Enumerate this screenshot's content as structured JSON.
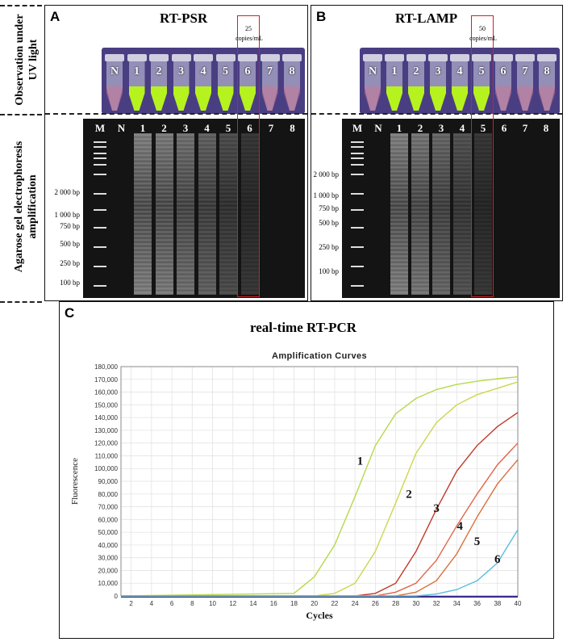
{
  "row_labels": {
    "uv": [
      "Observation under",
      "UV light"
    ],
    "gel": [
      "Agarose gel electrophoresis",
      "amplification"
    ]
  },
  "panel_a": {
    "letter": "A",
    "title": "RT-PSR",
    "tube_labels": [
      "N",
      "1",
      "2",
      "3",
      "4",
      "5",
      "6",
      "7",
      "8"
    ],
    "lane_labels": [
      "M",
      "N",
      "1",
      "2",
      "3",
      "4",
      "5",
      "6",
      "7",
      "8"
    ],
    "bp_labels": [
      "2 000 bp",
      "1 000 bp",
      "750 bp",
      "500 bp",
      "250 bp",
      "100 bp"
    ],
    "highlight_value": "25",
    "highlight_unit": "copies/mL"
  },
  "panel_b": {
    "letter": "B",
    "title": "RT-LAMP",
    "tube_labels": [
      "N",
      "1",
      "2",
      "3",
      "4",
      "5",
      "6",
      "7",
      "8"
    ],
    "lane_labels": [
      "M",
      "N",
      "1",
      "2",
      "3",
      "4",
      "5",
      "6",
      "7",
      "8"
    ],
    "bp_labels": [
      "2 000 bp",
      "1 000 bp",
      "750 bp",
      "500 bp",
      "250 bp",
      "100 bp"
    ],
    "highlight_value": "50",
    "highlight_unit": "copies/mL"
  },
  "panel_c": {
    "letter": "C",
    "title": "real-time RT-PCR"
  },
  "colors": {
    "uv_bg": "#4a3e83",
    "green": "#b6f21e",
    "red_box": "#d32020"
  },
  "chart_data": {
    "type": "line",
    "title": "Amplification Curves",
    "xlabel": "Cycles",
    "ylabel": "Fluorescence",
    "xlim": [
      1,
      40
    ],
    "ylim": [
      0,
      180000
    ],
    "x_ticks": [
      2,
      4,
      6,
      8,
      10,
      12,
      14,
      16,
      18,
      20,
      22,
      24,
      26,
      28,
      30,
      32,
      34,
      36,
      38,
      40
    ],
    "y_ticks": [
      0,
      10000,
      20000,
      30000,
      40000,
      50000,
      60000,
      70000,
      80000,
      90000,
      100000,
      110000,
      120000,
      130000,
      140000,
      150000,
      160000,
      170000,
      180000
    ],
    "y_tick_labels": [
      "0",
      "10,000",
      "20,000",
      "30,000",
      "40,000",
      "50,000",
      "60,000",
      "70,000",
      "80,000",
      "90,000",
      "100,000",
      "110,000",
      "120,000",
      "130,000",
      "140,000",
      "150,000",
      "160,000",
      "170,000",
      "180,000"
    ],
    "grid": true,
    "series": [
      {
        "name": "1",
        "color": "#b5d94a",
        "x": [
          18,
          20,
          22,
          24,
          26,
          28,
          30,
          32,
          34,
          36,
          38,
          40
        ],
        "y": [
          2000,
          15000,
          40000,
          78000,
          118000,
          143000,
          155000,
          162000,
          166000,
          168500,
          170500,
          172000
        ]
      },
      {
        "name": "2",
        "color": "#cdd64e",
        "x": [
          20,
          22,
          24,
          26,
          28,
          30,
          32,
          34,
          36,
          38,
          40
        ],
        "y": [
          0,
          2000,
          10000,
          35000,
          73000,
          112000,
          136000,
          150000,
          158000,
          163000,
          168000
        ]
      },
      {
        "name": "3",
        "color": "#c0392b",
        "x": [
          24,
          26,
          28,
          30,
          32,
          34,
          36,
          38,
          40
        ],
        "y": [
          0,
          2000,
          10000,
          35000,
          68000,
          98000,
          118000,
          133000,
          144000
        ]
      },
      {
        "name": "4",
        "color": "#e0664a",
        "x": [
          26,
          28,
          30,
          32,
          34,
          36,
          38,
          40
        ],
        "y": [
          0,
          3000,
          10000,
          28000,
          55000,
          80000,
          103000,
          120000
        ]
      },
      {
        "name": "5",
        "color": "#d9703c",
        "x": [
          28,
          30,
          32,
          34,
          36,
          38,
          40
        ],
        "y": [
          0,
          3000,
          12000,
          33000,
          62000,
          88000,
          107000
        ]
      },
      {
        "name": "6",
        "color": "#5bbfdc",
        "x": [
          30,
          32,
          34,
          36,
          38,
          40
        ],
        "y": [
          0,
          1500,
          5000,
          12000,
          26000,
          52000
        ]
      }
    ]
  }
}
